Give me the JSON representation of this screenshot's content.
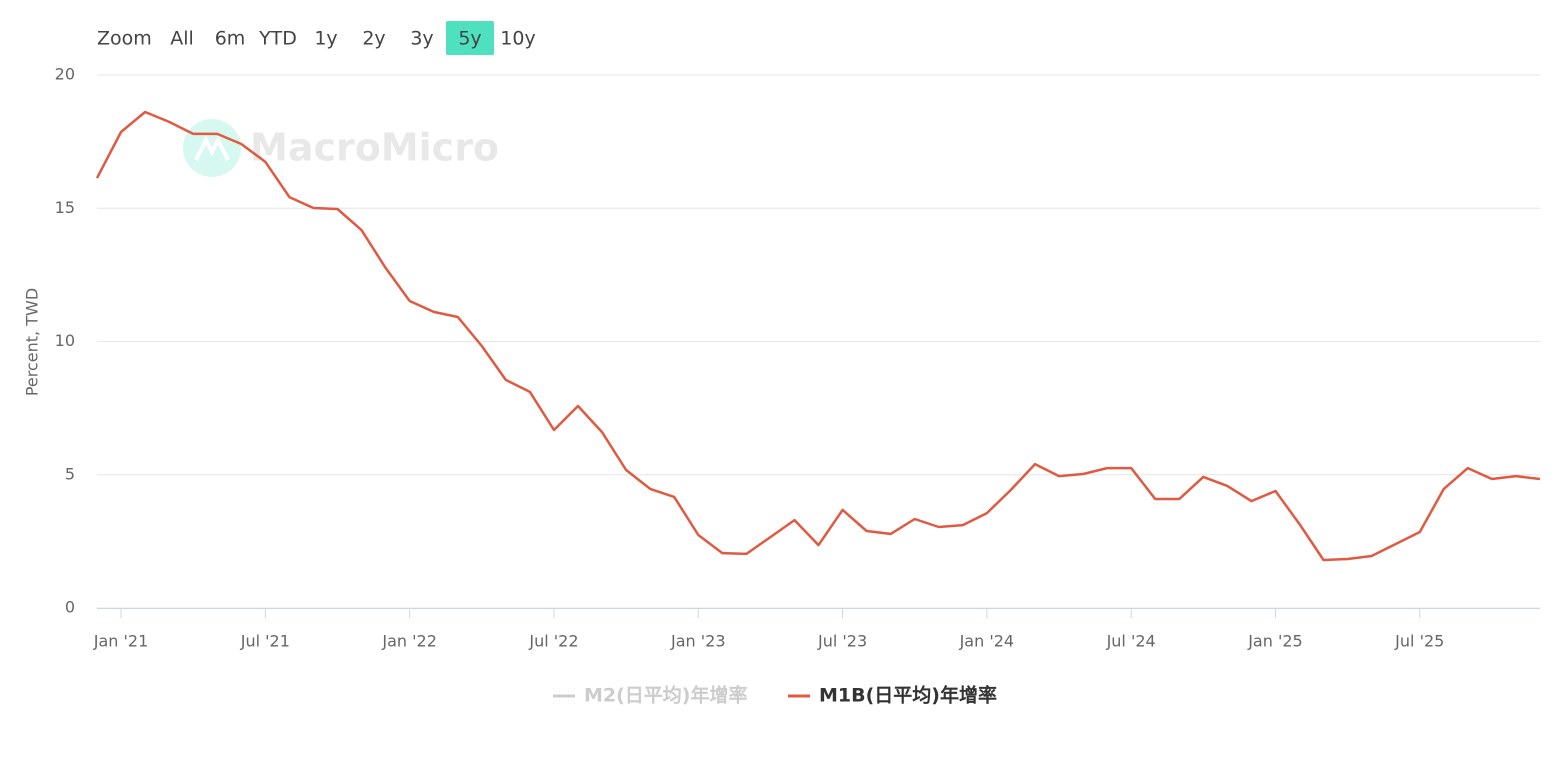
{
  "chart_data": {
    "type": "line",
    "range_selector": {
      "label": "Zoom",
      "buttons": [
        "All",
        "6m",
        "YTD",
        "1y",
        "2y",
        "3y",
        "5y",
        "10y"
      ],
      "selected": 6
    },
    "watermark": "MacroMicro",
    "y_label": "Percent, TWD",
    "x": [
      "2020-12",
      "2021-01",
      "2021-02",
      "2021-03",
      "2021-04",
      "2021-05",
      "2021-06",
      "2021-07",
      "2021-08",
      "2021-09",
      "2021-10",
      "2021-11",
      "2021-12",
      "2022-01",
      "2022-02",
      "2022-03",
      "2022-04",
      "2022-05",
      "2022-06",
      "2022-07",
      "2022-08",
      "2022-09",
      "2022-10",
      "2022-11",
      "2022-12",
      "2023-01",
      "2023-02",
      "2023-03",
      "2023-04",
      "2023-05",
      "2023-06",
      "2023-07",
      "2023-08",
      "2023-09",
      "2023-10",
      "2023-11",
      "2023-12",
      "2024-01",
      "2024-02",
      "2024-03",
      "2024-04",
      "2024-05",
      "2024-06",
      "2024-07",
      "2024-08",
      "2024-09",
      "2024-10",
      "2024-11",
      "2024-12",
      "2025-01",
      "2025-02",
      "2025-03",
      "2025-04",
      "2025-05",
      "2025-06",
      "2025-07",
      "2025-08",
      "2025-09",
      "2025-10",
      "2025-11",
      "2025-12"
    ],
    "series": [
      {
        "name": "M2(日平均)年增率",
        "color": "#cccccc",
        "visible": false
      },
      {
        "name": "M1B(日平均)年增率",
        "color": "#e05a41",
        "visible": true,
        "values": [
          16.13,
          17.86,
          18.61,
          18.24,
          17.79,
          17.79,
          17.41,
          16.74,
          15.42,
          15.01,
          14.97,
          14.18,
          12.76,
          11.52,
          11.11,
          10.92,
          9.83,
          8.56,
          8.11,
          6.68,
          7.58,
          6.6,
          5.18,
          4.47,
          4.17,
          2.74,
          2.06,
          2.03,
          2.66,
          3.3,
          2.36,
          3.68,
          2.89,
          2.78,
          3.34,
          3.04,
          3.11,
          3.56,
          4.43,
          5.4,
          4.95,
          5.03,
          5.25,
          5.25,
          4.09,
          4.09,
          4.92,
          4.58,
          4.01,
          4.39,
          3.15,
          1.8,
          1.84,
          1.95,
          2.4,
          2.85,
          4.47,
          5.25,
          4.84,
          4.95,
          4.84
        ]
      }
    ],
    "xlim": [
      "2020-12",
      "2025-12"
    ],
    "xticks": [
      {
        "value": "2021-01",
        "label": "Jan '21"
      },
      {
        "value": "2021-07",
        "label": "Jul '21"
      },
      {
        "value": "2022-01",
        "label": "Jan '22"
      },
      {
        "value": "2022-07",
        "label": "Jul '22"
      },
      {
        "value": "2023-01",
        "label": "Jan '23"
      },
      {
        "value": "2023-07",
        "label": "Jul '23"
      },
      {
        "value": "2024-01",
        "label": "Jan '24"
      },
      {
        "value": "2024-07",
        "label": "Jul '24"
      },
      {
        "value": "2025-01",
        "label": "Jan '25"
      },
      {
        "value": "2025-07",
        "label": "Jul '25"
      }
    ],
    "ylim": [
      0,
      20
    ],
    "yticks": [
      0,
      5,
      10,
      15,
      20
    ],
    "grid": true
  }
}
